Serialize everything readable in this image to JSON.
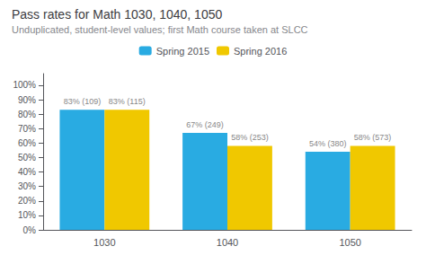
{
  "chart_data": {
    "type": "bar",
    "title": "Pass rates for Math 1030, 1040, 1050",
    "subtitle": "Unduplicated, student-level values; first Math course taken at SLCC",
    "categories": [
      "1030",
      "1040",
      "1050"
    ],
    "series": [
      {
        "name": "Spring 2015",
        "color": "#29ABE2",
        "values": [
          83,
          67,
          54
        ],
        "value_labels": [
          "83% (109)",
          "67% (249)",
          "54% (380)"
        ]
      },
      {
        "name": "Spring 2016",
        "color": "#F0C800",
        "values": [
          83,
          58,
          58
        ],
        "value_labels": [
          "83% (115)",
          "58% (253)",
          "58% (573)"
        ]
      }
    ],
    "ylim": [
      0,
      108
    ],
    "yticks": [
      {
        "value": 0,
        "label": "0%"
      },
      {
        "value": 10,
        "label": "10%"
      },
      {
        "value": 20,
        "label": "20%"
      },
      {
        "value": 30,
        "label": "30%"
      },
      {
        "value": 40,
        "label": "40%"
      },
      {
        "value": 50,
        "label": "50%"
      },
      {
        "value": 60,
        "label": "60%"
      },
      {
        "value": 70,
        "label": "70%"
      },
      {
        "value": 80,
        "label": "80%"
      },
      {
        "value": 90,
        "label": "90%"
      },
      {
        "value": 100,
        "label": "100%"
      }
    ],
    "grid": false,
    "legend": "top",
    "data_labels": true
  }
}
